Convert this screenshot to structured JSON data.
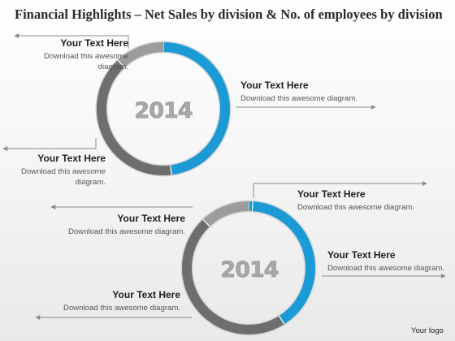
{
  "title": "Financial Highlights – Net Sales by division & No. of employees by division",
  "colors": {
    "blue": "#1b9ad6",
    "dark": "#6e6e6e",
    "light": "#9c9c9c",
    "arrow": "#8a8a8a"
  },
  "ring1": {
    "year": "2014",
    "segments": [
      {
        "name": "blue",
        "percent": 48
      },
      {
        "name": "dark",
        "percent": 40
      },
      {
        "name": "light",
        "percent": 12
      }
    ],
    "labels": [
      {
        "heading": "Your Text Here",
        "body": "Download this awesome diagram."
      },
      {
        "heading": "Your Text Here",
        "body": "Download this awesome diagram."
      },
      {
        "heading": "Your Text Here",
        "body": "Download this awesome diagram."
      }
    ]
  },
  "ring2": {
    "year": "2014",
    "segments": [
      {
        "name": "blue-marker",
        "percent": 1
      },
      {
        "name": "blue",
        "percent": 40
      },
      {
        "name": "dark",
        "percent": 47
      },
      {
        "name": "light",
        "percent": 12
      }
    ],
    "labels": [
      {
        "heading": "Your Text Here",
        "body": "Download this awesome diagram."
      },
      {
        "heading": "Your Text Here",
        "body": "Download this awesome diagram."
      },
      {
        "heading": "Your Text Here",
        "body": "Download this awesome diagram."
      },
      {
        "heading": "Your Text Here",
        "body": "Download this awesome diagram."
      }
    ]
  },
  "footer": {
    "logo": "Your logo"
  }
}
